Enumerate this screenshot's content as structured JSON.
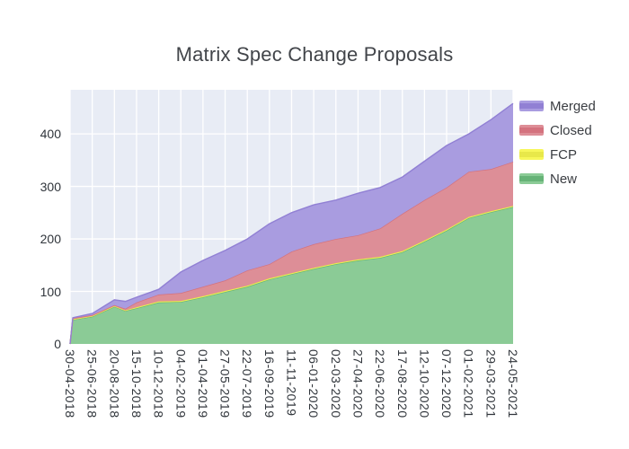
{
  "chart_data": {
    "type": "area",
    "stacked": true,
    "title": "Matrix Spec Change Proposals",
    "legend_position": "right-top",
    "grid": true,
    "plot_bg": "#e8ecf5",
    "grid_color": "#ffffff",
    "ylim": [
      0,
      484
    ],
    "yticks": [
      0,
      100,
      200,
      300,
      400
    ],
    "x_range_days": [
      0,
      1120
    ],
    "x_tick_interval_days": 56,
    "x_tick_labels": [
      "30-04-2018",
      "25-06-2018",
      "20-08-2018",
      "15-10-2018",
      "10-12-2018",
      "04-02-2019",
      "01-04-2019",
      "27-05-2019",
      "22-07-2019",
      "16-09-2019",
      "11-11-2019",
      "06-01-2020",
      "02-03-2020",
      "27-04-2020",
      "22-06-2020",
      "17-08-2020",
      "12-10-2020",
      "07-12-2020",
      "01-02-2021",
      "29-03-2021",
      "24-05-2021"
    ],
    "x_dates": [
      "30-04-2018",
      "07-05-2018",
      "25-06-2018",
      "20-08-2018",
      "17-09-2018",
      "15-10-2018",
      "10-12-2018",
      "04-02-2019",
      "01-04-2019",
      "27-05-2019",
      "22-07-2019",
      "16-09-2019",
      "11-11-2019",
      "06-01-2020",
      "02-03-2020",
      "27-04-2020",
      "22-06-2020",
      "17-08-2020",
      "12-10-2020",
      "07-12-2020",
      "01-02-2021",
      "29-03-2021",
      "24-05-2021"
    ],
    "x_days": [
      0,
      7,
      56,
      112,
      140,
      168,
      224,
      280,
      336,
      392,
      448,
      504,
      560,
      616,
      672,
      728,
      784,
      840,
      896,
      952,
      1008,
      1064,
      1120
    ],
    "series": [
      {
        "name": "New",
        "fill": "#8bcb96",
        "line": "#66b377",
        "values": [
          0,
          46,
          52,
          71,
          63,
          68,
          79,
          80,
          89,
          99,
          109,
          123,
          133,
          143,
          152,
          159,
          164,
          175,
          195,
          216,
          240,
          251,
          261
        ]
      },
      {
        "name": "FCP",
        "fill": "#f7f75a",
        "line": "#e8e84a",
        "values": [
          0,
          1,
          1,
          1,
          1,
          2,
          2,
          2,
          2,
          2,
          2,
          2,
          2,
          2,
          2,
          2,
          2,
          2,
          2,
          2,
          2,
          2,
          2
        ]
      },
      {
        "name": "Closed",
        "fill": "#dd8e97",
        "line": "#d4727e",
        "values": [
          0,
          2,
          2,
          2,
          3,
          9,
          13,
          15,
          18,
          20,
          29,
          27,
          41,
          45,
          46,
          46,
          54,
          71,
          77,
          80,
          86,
          80,
          84
        ]
      },
      {
        "name": "Merged",
        "fill": "#a99ce0",
        "line": "#9180d4",
        "values": [
          0,
          1,
          3,
          10,
          14,
          10,
          10,
          40,
          50,
          57,
          60,
          77,
          74,
          75,
          74,
          80,
          78,
          70,
          74,
          80,
          72,
          94,
          111
        ]
      }
    ],
    "legend_order": [
      "Merged",
      "Closed",
      "FCP",
      "New"
    ]
  }
}
